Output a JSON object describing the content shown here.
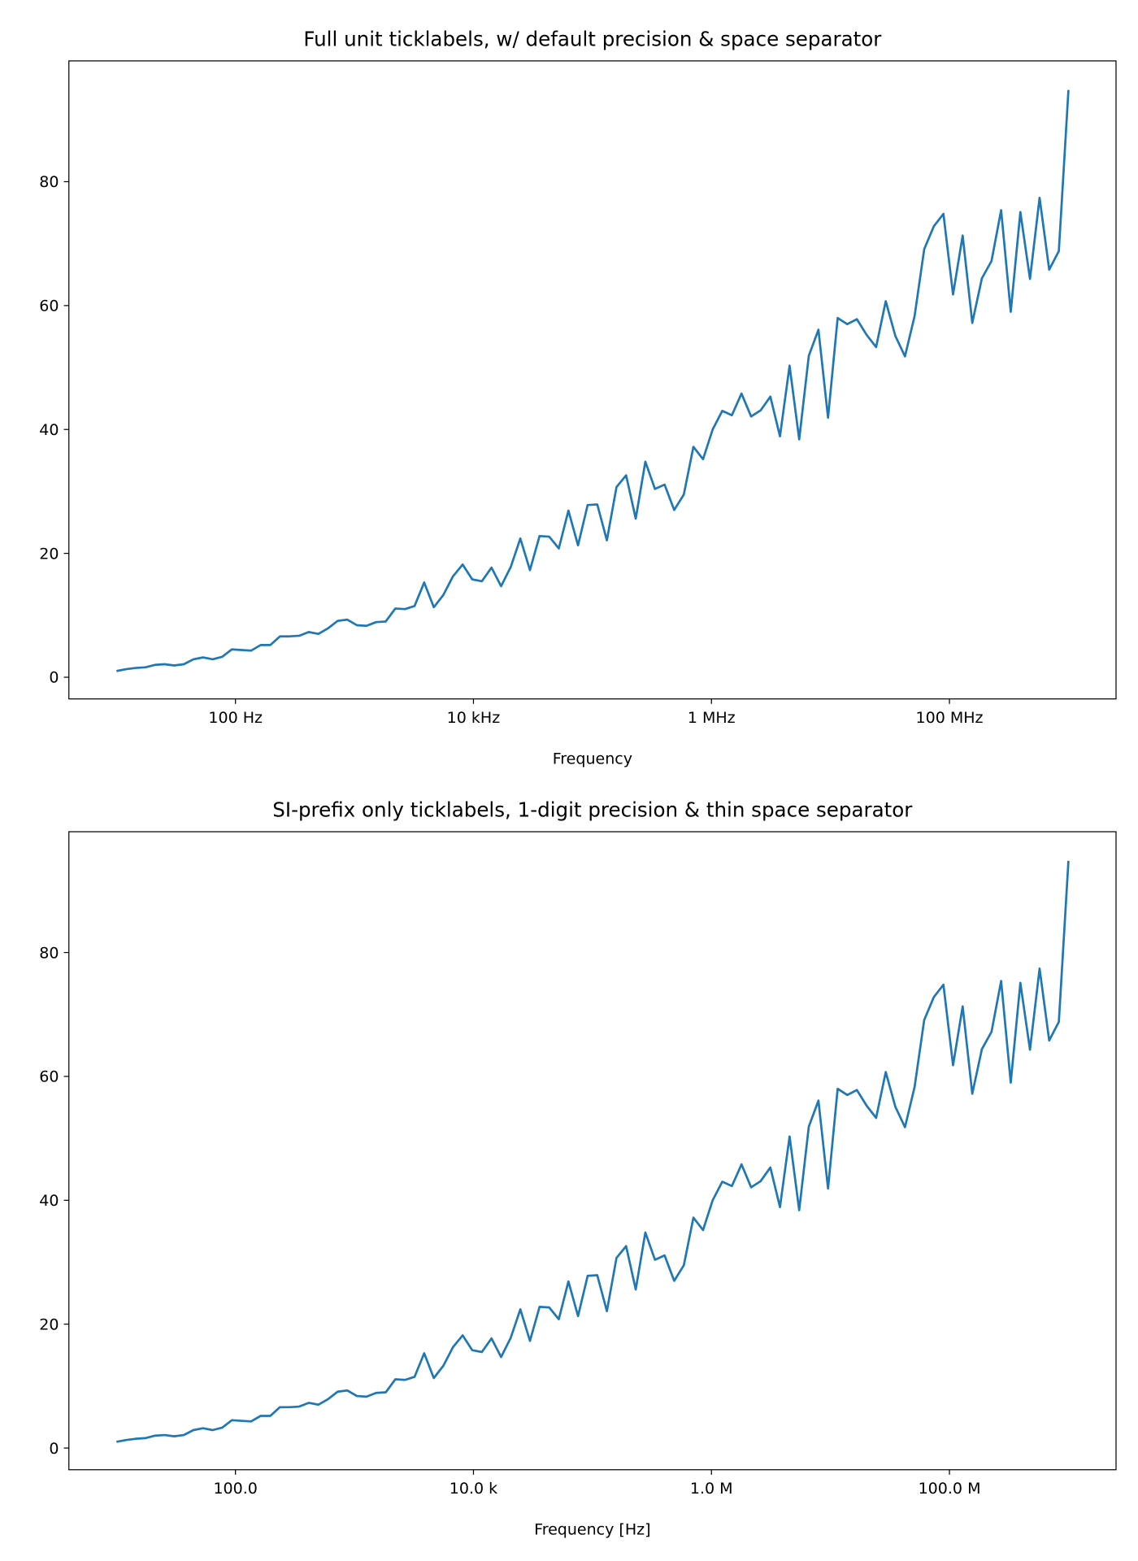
{
  "chart_data": [
    {
      "type": "line",
      "title": "Full unit ticklabels, w/ default precision & space separator",
      "xlabel": "Frequency",
      "ylabel": "",
      "xscale": "log",
      "xlim": [
        10,
        1000000000
      ],
      "ylim": [
        -3.5,
        99.5
      ],
      "grid": false,
      "line_color": "#1f77b4",
      "xticks": [
        100,
        10000,
        1000000,
        100000000
      ],
      "xtick_labels": [
        "100 Hz",
        "10 kHz",
        "1 MHz",
        "100 MHz"
      ],
      "yticks": [
        0,
        20,
        40,
        60,
        80
      ],
      "ytick_labels": [
        "0",
        "20",
        "40",
        "60",
        "80"
      ]
    },
    {
      "type": "line",
      "title": "SI-prefix only ticklabels, 1-digit precision & thin space separator",
      "xlabel": "Frequency [Hz]",
      "ylabel": "",
      "xscale": "log",
      "xlim": [
        10,
        1000000000
      ],
      "ylim": [
        -3.5,
        99.5
      ],
      "grid": false,
      "line_color": "#1f77b4",
      "xticks": [
        100,
        10000,
        1000000,
        100000000
      ],
      "xtick_labels": [
        "100.0",
        "10.0 k",
        "1.0 M",
        "100.0 M"
      ],
      "yticks": [
        0,
        20,
        40,
        60,
        80
      ],
      "ytick_labels": [
        "0",
        "20",
        "40",
        "60",
        "80"
      ]
    }
  ],
  "series_x": {
    "logspace_start": 10,
    "logspace_end": 1000000000,
    "count": 100
  },
  "series_y": [
    1.0,
    1.3,
    1.5,
    1.6,
    2.0,
    2.1,
    1.9,
    2.1,
    2.9,
    3.2,
    2.9,
    3.3,
    4.5,
    4.4,
    4.3,
    5.2,
    5.2,
    6.6,
    6.6,
    6.7,
    7.3,
    7.0,
    7.9,
    9.1,
    9.3,
    8.4,
    8.3,
    8.9,
    9.0,
    11.1,
    11.0,
    11.5,
    15.3,
    11.3,
    13.3,
    16.3,
    18.2,
    15.8,
    15.5,
    17.7,
    14.7,
    17.8,
    22.4,
    17.3,
    22.8,
    22.7,
    20.8,
    26.9,
    21.3,
    27.8,
    27.9,
    22.1,
    30.7,
    32.6,
    25.6,
    34.8,
    30.4,
    31.1,
    27.0,
    29.5,
    37.2,
    35.2,
    40.0,
    43.0,
    42.3,
    45.8,
    42.1,
    43.1,
    45.3,
    38.9,
    50.3,
    38.4,
    51.9,
    56.1,
    41.9,
    58.0,
    57.0,
    57.8,
    55.3,
    53.3,
    60.7,
    55.1,
    51.8,
    58.3,
    69.1,
    72.8,
    74.8,
    61.8,
    71.3,
    57.2,
    64.4,
    67.2,
    75.4,
    59.0,
    75.1,
    64.3,
    77.4,
    65.8,
    68.8,
    94.8
  ]
}
